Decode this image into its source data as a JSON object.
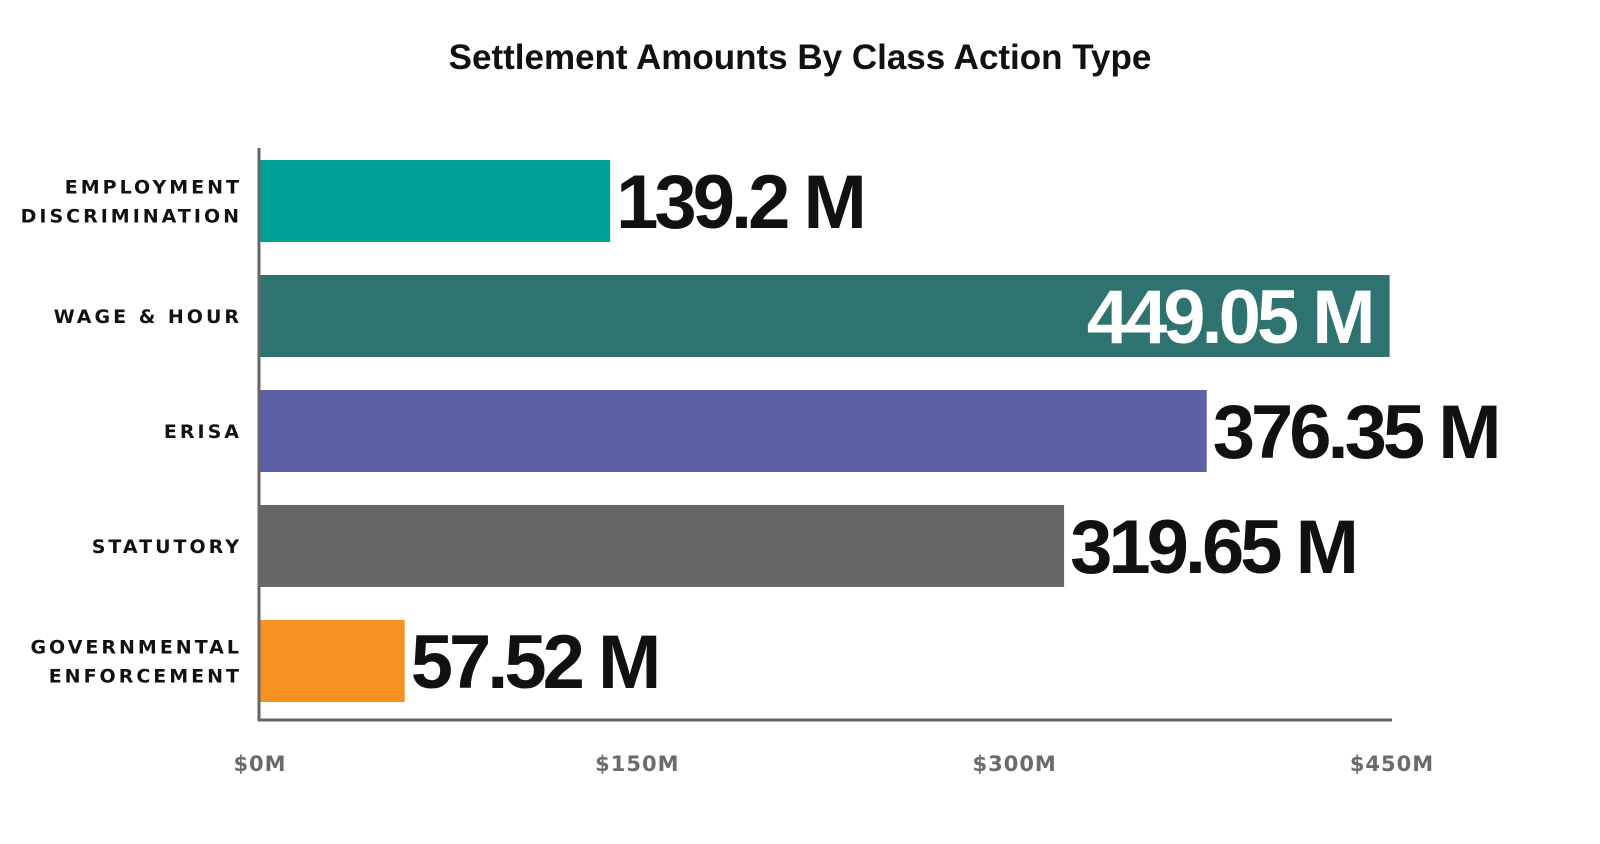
{
  "chart_data": {
    "type": "bar",
    "orientation": "horizontal",
    "title": "Settlement Amounts By Class Action Type",
    "xlabel": "",
    "ylabel": "",
    "categories": [
      [
        "EMPLOYMENT",
        "DISCRIMINATION"
      ],
      [
        "WAGE & HOUR"
      ],
      [
        "ERISA"
      ],
      [
        "STATUTORY"
      ],
      [
        "GOVERNMENTAL",
        "ENFORCEMENT"
      ]
    ],
    "values": [
      139.2,
      449.05,
      376.35,
      319.65,
      57.52
    ],
    "value_labels": [
      "139.2 M",
      "449.05 M",
      "376.35 M",
      "319.65 M",
      "57.52 M"
    ],
    "bar_colors": [
      "#00a096",
      "#2f7370",
      "#5d60a6",
      "#676767",
      "#f79122"
    ],
    "value_label_inside": [
      false,
      true,
      false,
      false,
      false
    ],
    "value_label_colors": [
      "#111111",
      "#ffffff",
      "#111111",
      "#111111",
      "#111111"
    ],
    "xlim": [
      0,
      450
    ],
    "xticks": [
      0,
      150,
      300,
      450
    ],
    "xtick_labels": [
      "$0M",
      "$150M",
      "$300M",
      "$450M"
    ],
    "grid": false,
    "legend": "none"
  }
}
